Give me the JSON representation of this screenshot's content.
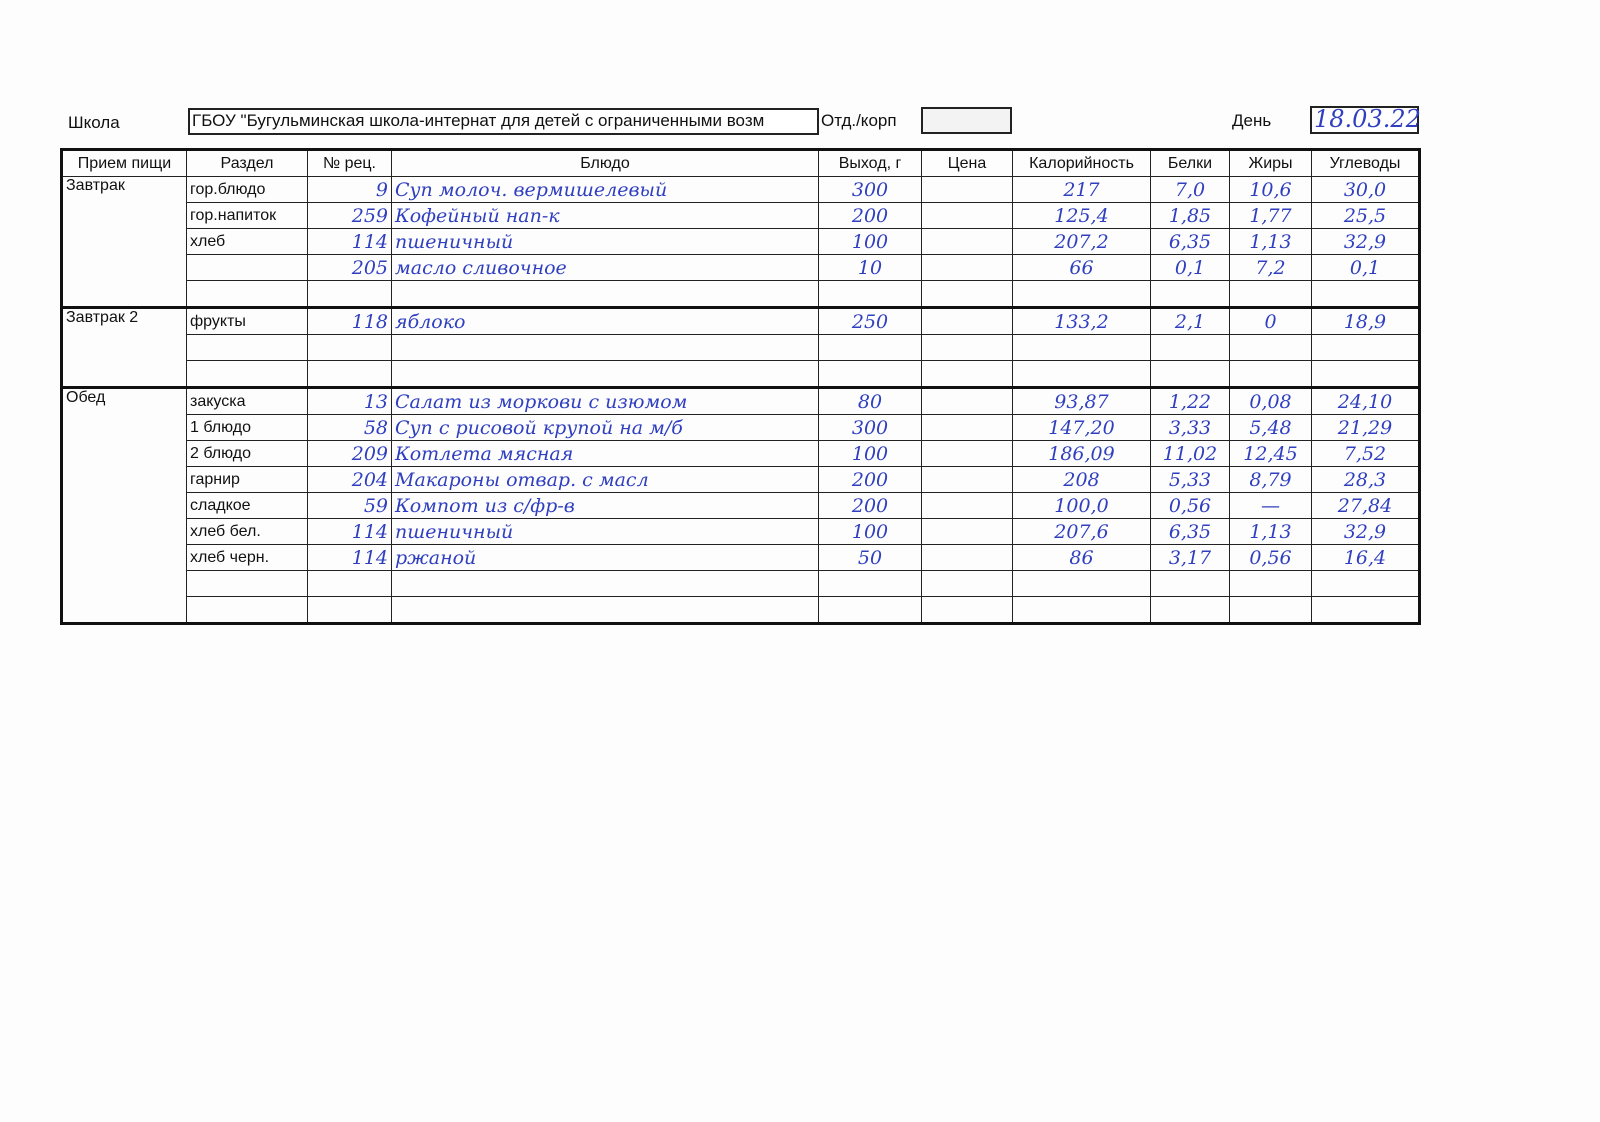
{
  "header": {
    "school_label": "Школа",
    "school_value": "ГБОУ \"Бугульминская школа-интернат для детей с ограниченными возм",
    "dept_label": "Отд./корп",
    "dept_value": "",
    "day_label": "День",
    "day_value": "18.03.22"
  },
  "columns": [
    "Прием пищи",
    "Раздел",
    "№ рец.",
    "Блюдо",
    "Выход, г",
    "Цена",
    "Калорийность",
    "Белки",
    "Жиры",
    "Углеводы"
  ],
  "meals": [
    {
      "name": "Завтрак",
      "rows": [
        {
          "section": "гор.блюдо",
          "recipe": "9",
          "dish": "Суп молоч. вермишелевый",
          "yield": "300",
          "price": "",
          "kcal": "217",
          "protein": "7,0",
          "fat": "10,6",
          "carbs": "30,0"
        },
        {
          "section": "гор.напиток",
          "recipe": "259",
          "dish": "Кофейный нап-к",
          "yield": "200",
          "price": "",
          "kcal": "125,4",
          "protein": "1,85",
          "fat": "1,77",
          "carbs": "25,5"
        },
        {
          "section": "хлеб",
          "recipe": "114",
          "dish": "пшеничный",
          "yield": "100",
          "price": "",
          "kcal": "207,2",
          "protein": "6,35",
          "fat": "1,13",
          "carbs": "32,9"
        },
        {
          "section": "",
          "recipe": "205",
          "dish": "масло сливочное",
          "yield": "10",
          "price": "",
          "kcal": "66",
          "protein": "0,1",
          "fat": "7,2",
          "carbs": "0,1"
        },
        {
          "section": "",
          "recipe": "",
          "dish": "",
          "yield": "",
          "price": "",
          "kcal": "",
          "protein": "",
          "fat": "",
          "carbs": ""
        }
      ]
    },
    {
      "name": "Завтрак 2",
      "rows": [
        {
          "section": "фрукты",
          "recipe": "118",
          "dish": "яблоко",
          "yield": "250",
          "price": "",
          "kcal": "133,2",
          "protein": "2,1",
          "fat": "0",
          "carbs": "18,9"
        },
        {
          "section": "",
          "recipe": "",
          "dish": "",
          "yield": "",
          "price": "",
          "kcal": "",
          "protein": "",
          "fat": "",
          "carbs": ""
        },
        {
          "section": "",
          "recipe": "",
          "dish": "",
          "yield": "",
          "price": "",
          "kcal": "",
          "protein": "",
          "fat": "",
          "carbs": ""
        }
      ]
    },
    {
      "name": "Обед",
      "rows": [
        {
          "section": "закуска",
          "recipe": "13",
          "dish": "Салат из моркови с изюмом",
          "yield": "80",
          "price": "",
          "kcal": "93,87",
          "protein": "1,22",
          "fat": "0,08",
          "carbs": "24,10"
        },
        {
          "section": "1 блюдо",
          "recipe": "58",
          "dish": "Суп с рисовой крупой на м/б",
          "yield": "300",
          "price": "",
          "kcal": "147,20",
          "protein": "3,33",
          "fat": "5,48",
          "carbs": "21,29"
        },
        {
          "section": "2 блюдо",
          "recipe": "209",
          "dish": "Котлета мясная",
          "yield": "100",
          "price": "",
          "kcal": "186,09",
          "protein": "11,02",
          "fat": "12,45",
          "carbs": "7,52"
        },
        {
          "section": "гарнир",
          "recipe": "204",
          "dish": "Макароны отвар. с масл",
          "yield": "200",
          "price": "",
          "kcal": "208",
          "protein": "5,33",
          "fat": "8,79",
          "carbs": "28,3"
        },
        {
          "section": "сладкое",
          "recipe": "59",
          "dish": "Компот из с/фр-в",
          "yield": "200",
          "price": "",
          "kcal": "100,0",
          "protein": "0,56",
          "fat": "—",
          "carbs": "27,84"
        },
        {
          "section": "хлеб бел.",
          "recipe": "114",
          "dish": "пшеничный",
          "yield": "100",
          "price": "",
          "kcal": "207,6",
          "protein": "6,35",
          "fat": "1,13",
          "carbs": "32,9"
        },
        {
          "section": "хлеб черн.",
          "recipe": "114",
          "dish": "ржаной",
          "yield": "50",
          "price": "",
          "kcal": "86",
          "protein": "3,17",
          "fat": "0,56",
          "carbs": "16,4"
        },
        {
          "section": "",
          "recipe": "",
          "dish": "",
          "yield": "",
          "price": "",
          "kcal": "",
          "protein": "",
          "fat": "",
          "carbs": ""
        },
        {
          "section": "",
          "recipe": "",
          "dish": "",
          "yield": "",
          "price": "",
          "kcal": "",
          "protein": "",
          "fat": "",
          "carbs": ""
        }
      ]
    }
  ]
}
